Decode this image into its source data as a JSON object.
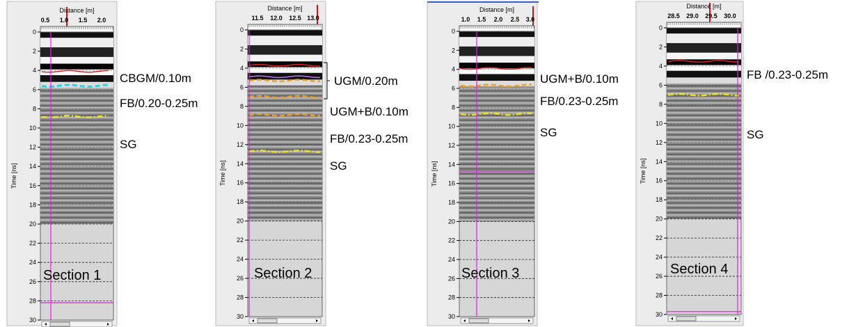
{
  "panels": [
    {
      "x_axis_title": "Distance [m]",
      "y_axis_title": "Time [ns]",
      "x_ticks": [
        "0.5",
        "1.0",
        "1.5",
        "2.0"
      ],
      "y_ticks": [
        "0",
        "2",
        "4",
        "6",
        "8",
        "10",
        "12",
        "14",
        "16",
        "18",
        "20",
        "22",
        "24",
        "26",
        "28",
        "30"
      ],
      "section": "Section 1",
      "annotations": [
        "CBGM/0.10m",
        "FB/0.20-0.25m",
        "SG"
      ]
    },
    {
      "x_axis_title": "Distance [m]",
      "y_axis_title": "Time [ns]",
      "x_ticks": [
        "11.5",
        "12.0",
        "12.5",
        "13.0"
      ],
      "y_ticks": [
        "0",
        "2",
        "4",
        "6",
        "8",
        "10",
        "12",
        "14",
        "16",
        "18",
        "20",
        "22",
        "24",
        "26",
        "28",
        "30"
      ],
      "section": "Section 2",
      "annotations": [
        "UGM/0.20m",
        "UGM+B/0.10m",
        "FB/0.23-0.25m",
        "SG"
      ]
    },
    {
      "x_axis_title": "Distance [m]",
      "y_axis_title": "Time [ns]",
      "x_ticks": [
        "1.0",
        "1.5",
        "2.0",
        "2.5",
        "3.0"
      ],
      "y_ticks": [
        "0",
        "2",
        "4",
        "6",
        "8",
        "10",
        "12",
        "14",
        "16",
        "18",
        "20",
        "22",
        "24",
        "26",
        "28",
        "30"
      ],
      "section": "Section 3",
      "annotations": [
        "UGM+B/0.10m",
        "FB/0.23-0.25m",
        "SG"
      ]
    },
    {
      "x_axis_title": "Distance [m]",
      "y_axis_title": "Time [ns]",
      "x_ticks": [
        "28.5",
        "29.0",
        "29.5",
        "30.0"
      ],
      "y_ticks": [
        "0",
        "2",
        "4",
        "6",
        "8",
        "10",
        "12",
        "14",
        "16",
        "18",
        "20",
        "22",
        "24",
        "26",
        "28",
        "30"
      ],
      "section": "Section 4",
      "annotations": [
        "FB /0.23-0.25m",
        "SG"
      ]
    }
  ]
}
